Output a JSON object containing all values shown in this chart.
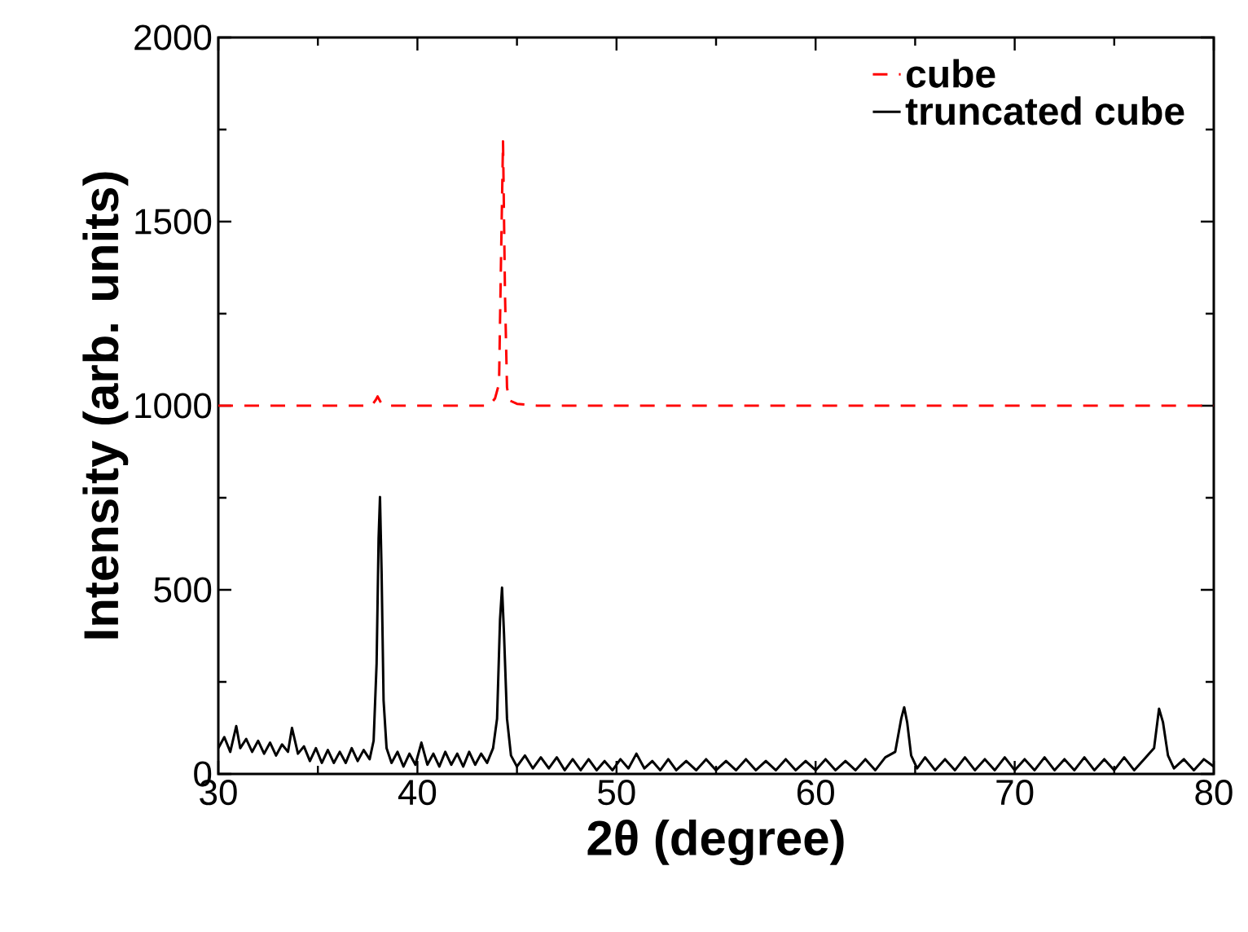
{
  "chart_data": {
    "type": "line",
    "xlabel": "2θ (degree)",
    "ylabel": "Intensity (arb. units)",
    "xlim": [
      30,
      80
    ],
    "ylim": [
      0,
      2000
    ],
    "xticks": [
      30,
      40,
      50,
      60,
      70,
      80
    ],
    "yticks": [
      0,
      500,
      1000,
      1500,
      2000
    ],
    "legend": "top right",
    "series": [
      {
        "name": "cube",
        "color": "#ff0000",
        "line_style": "dashed",
        "x": [
          30,
          37.7,
          37.9,
          38.0,
          38.2,
          38.5,
          43.6,
          43.9,
          44.1,
          44.2,
          44.3,
          44.4,
          44.5,
          44.6,
          45,
          46,
          80
        ],
        "values": [
          1000,
          1000,
          1015,
          1025,
          1005,
          1000,
          1000,
          1020,
          1060,
          1400,
          1718,
          1300,
          1050,
          1015,
          1005,
          1000,
          1000
        ]
      },
      {
        "name": "truncated cube",
        "color": "#000000",
        "line_style": "solid",
        "x": [
          30,
          30.3,
          30.6,
          30.9,
          31.1,
          31.4,
          31.7,
          32,
          32.3,
          32.6,
          32.9,
          33.2,
          33.5,
          33.7,
          34,
          34.3,
          34.6,
          34.9,
          35.2,
          35.5,
          35.8,
          36.1,
          36.4,
          36.7,
          37,
          37.3,
          37.6,
          37.8,
          37.95,
          38.05,
          38.12,
          38.2,
          38.3,
          38.45,
          38.7,
          39,
          39.3,
          39.6,
          39.9,
          40.2,
          40.5,
          40.8,
          41.1,
          41.4,
          41.7,
          42,
          42.3,
          42.6,
          42.9,
          43.2,
          43.5,
          43.8,
          44.0,
          44.15,
          44.25,
          44.35,
          44.5,
          44.7,
          45,
          45.4,
          45.8,
          46.2,
          46.6,
          47,
          47.4,
          47.8,
          48.2,
          48.6,
          49,
          49.4,
          49.8,
          50.2,
          50.6,
          51,
          51.4,
          51.8,
          52.2,
          52.6,
          53,
          53.5,
          54,
          54.5,
          55,
          55.5,
          56,
          56.5,
          57,
          57.5,
          58,
          58.5,
          59,
          59.5,
          60,
          60.5,
          61,
          61.5,
          62,
          62.5,
          63,
          63.5,
          64,
          64.3,
          64.45,
          64.6,
          64.8,
          65.1,
          65.5,
          66,
          66.5,
          67,
          67.5,
          68,
          68.5,
          69,
          69.5,
          70,
          70.5,
          71,
          71.5,
          72,
          72.5,
          73,
          73.5,
          74,
          74.5,
          75,
          75.5,
          76,
          76.5,
          77,
          77.25,
          77.45,
          77.7,
          78,
          78.5,
          79,
          79.5,
          80
        ],
        "values": [
          70,
          100,
          60,
          130,
          70,
          95,
          60,
          90,
          55,
          85,
          50,
          80,
          60,
          125,
          55,
          75,
          35,
          70,
          30,
          65,
          30,
          60,
          30,
          70,
          35,
          65,
          40,
          90,
          300,
          640,
          752,
          550,
          200,
          70,
          30,
          60,
          20,
          55,
          25,
          85,
          25,
          55,
          20,
          60,
          25,
          55,
          20,
          60,
          25,
          55,
          30,
          70,
          150,
          420,
          506,
          380,
          150,
          50,
          20,
          50,
          15,
          45,
          15,
          45,
          10,
          40,
          10,
          40,
          10,
          35,
          10,
          40,
          15,
          55,
          15,
          35,
          10,
          40,
          10,
          35,
          10,
          40,
          10,
          35,
          10,
          40,
          10,
          35,
          10,
          40,
          10,
          35,
          10,
          40,
          10,
          35,
          10,
          40,
          10,
          45,
          60,
          150,
          181,
          140,
          50,
          15,
          45,
          10,
          40,
          10,
          45,
          10,
          40,
          10,
          45,
          10,
          40,
          10,
          45,
          10,
          40,
          10,
          45,
          10,
          40,
          10,
          45,
          10,
          40,
          70,
          177,
          140,
          50,
          15,
          40,
          10,
          40,
          20
        ]
      }
    ]
  }
}
